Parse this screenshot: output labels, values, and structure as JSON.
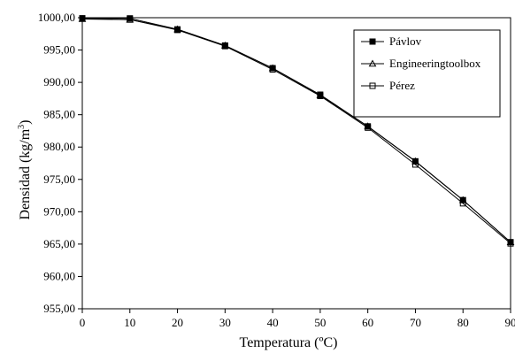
{
  "chart_data": {
    "type": "line",
    "title": "",
    "xlabel": "Temperatura (ºC)",
    "ylabel_main": "Densidad (kg/m",
    "ylabel_sup": "3",
    "ylabel_close": ")",
    "xlim": [
      0,
      90
    ],
    "ylim": [
      955,
      1000
    ],
    "xticks": [
      0,
      10,
      20,
      30,
      40,
      50,
      60,
      70,
      80,
      90
    ],
    "xtick_labels": [
      "0",
      "10",
      "20",
      "30",
      "40",
      "50",
      "60",
      "70",
      "80",
      "90"
    ],
    "yticks": [
      955,
      960,
      965,
      970,
      975,
      980,
      985,
      990,
      995,
      1000
    ],
    "ytick_labels": [
      "955,00",
      "960,00",
      "965,00",
      "970,00",
      "975,00",
      "980,00",
      "985,00",
      "990,00",
      "995,00",
      "1000,00"
    ],
    "grid": false,
    "legend_position": "top-right",
    "x": [
      0,
      10,
      20,
      30,
      40,
      50,
      60,
      70,
      80,
      90
    ],
    "series": [
      {
        "name": "Pávlov",
        "marker": "filled-square",
        "values": [
          999.9,
          999.9,
          998.2,
          995.7,
          992.2,
          988.1,
          983.2,
          977.8,
          971.8,
          965.3
        ]
      },
      {
        "name": "Engineeringtoolbox",
        "marker": "triangle",
        "values": [
          999.8,
          999.7,
          998.2,
          995.7,
          992.2,
          988.0,
          983.2,
          977.8,
          971.8,
          965.3
        ]
      },
      {
        "name": "Pérez",
        "marker": "open-square",
        "values": [
          999.9,
          999.7,
          998.1,
          995.6,
          992.0,
          987.9,
          983.0,
          977.3,
          971.3,
          965.1
        ]
      }
    ]
  }
}
